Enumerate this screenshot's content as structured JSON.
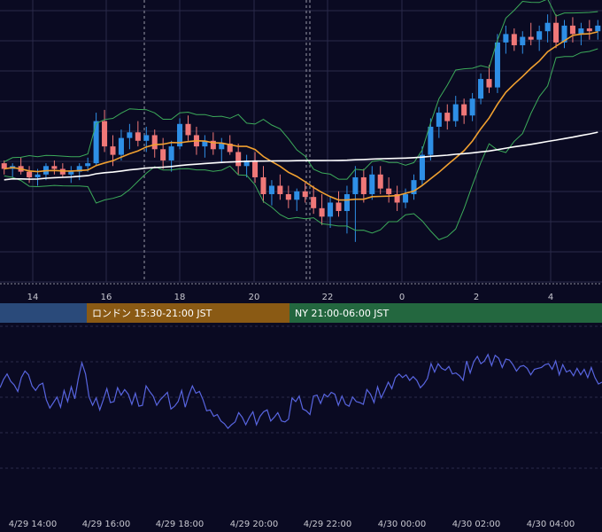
{
  "chart_data": [
    {
      "type": "candlestick",
      "x_ticks": [
        "14",
        "16",
        "18",
        "20",
        "22",
        "0",
        "2",
        "4"
      ],
      "series": [
        {
          "name": "",
          "color": "#ffffff",
          "kind": "moving-average-long"
        },
        {
          "name": "",
          "color": "#f0a030",
          "kind": "moving-average-short"
        },
        {
          "name": "",
          "color": "#3caa5a",
          "kind": "bollinger-bands"
        }
      ],
      "candle_colors": {
        "up": "#2e8fe6",
        "down": "#f07878"
      },
      "candles": [
        {
          "o": 100,
          "h": 100.1,
          "l": 99.6,
          "c": 99.8
        },
        {
          "o": 99.8,
          "h": 100.0,
          "l": 99.5,
          "c": 99.9
        },
        {
          "o": 99.9,
          "h": 100.2,
          "l": 99.6,
          "c": 99.7
        },
        {
          "o": 99.7,
          "h": 99.9,
          "l": 99.3,
          "c": 99.5
        },
        {
          "o": 99.5,
          "h": 99.8,
          "l": 99.2,
          "c": 99.6
        },
        {
          "o": 99.6,
          "h": 100.0,
          "l": 99.4,
          "c": 99.9
        },
        {
          "o": 99.9,
          "h": 100.1,
          "l": 99.6,
          "c": 99.8
        },
        {
          "o": 99.8,
          "h": 100.0,
          "l": 99.5,
          "c": 99.6
        },
        {
          "o": 99.6,
          "h": 99.9,
          "l": 99.3,
          "c": 99.7
        },
        {
          "o": 99.7,
          "h": 100.0,
          "l": 99.4,
          "c": 99.9
        },
        {
          "o": 99.9,
          "h": 100.2,
          "l": 99.7,
          "c": 100.0
        },
        {
          "o": 100,
          "h": 101.8,
          "l": 99.9,
          "c": 101.5
        },
        {
          "o": 101.5,
          "h": 101.9,
          "l": 100.4,
          "c": 100.6
        },
        {
          "o": 100.6,
          "h": 101.0,
          "l": 99.9,
          "c": 100.3
        },
        {
          "o": 100.3,
          "h": 101.2,
          "l": 100.1,
          "c": 100.9
        },
        {
          "o": 100.9,
          "h": 101.4,
          "l": 100.5,
          "c": 101.1
        },
        {
          "o": 101.1,
          "h": 101.5,
          "l": 100.6,
          "c": 100.8
        },
        {
          "o": 100.8,
          "h": 101.3,
          "l": 100.4,
          "c": 101.0
        },
        {
          "o": 101.0,
          "h": 101.2,
          "l": 100.2,
          "c": 100.5
        },
        {
          "o": 100.5,
          "h": 100.9,
          "l": 99.8,
          "c": 100.1
        },
        {
          "o": 100.1,
          "h": 100.8,
          "l": 99.7,
          "c": 100.6
        },
        {
          "o": 100.6,
          "h": 101.6,
          "l": 100.5,
          "c": 101.4
        },
        {
          "o": 101.4,
          "h": 101.7,
          "l": 100.8,
          "c": 101.0
        },
        {
          "o": 101.0,
          "h": 101.3,
          "l": 100.3,
          "c": 100.6
        },
        {
          "o": 100.6,
          "h": 101.0,
          "l": 100.2,
          "c": 100.8
        },
        {
          "o": 100.8,
          "h": 101.1,
          "l": 100.3,
          "c": 100.5
        },
        {
          "o": 100.5,
          "h": 100.9,
          "l": 100.0,
          "c": 100.7
        },
        {
          "o": 100.7,
          "h": 101.0,
          "l": 100.3,
          "c": 100.4
        },
        {
          "o": 100.4,
          "h": 100.7,
          "l": 99.6,
          "c": 99.9
        },
        {
          "o": 99.9,
          "h": 100.3,
          "l": 99.5,
          "c": 100.1
        },
        {
          "o": 100.1,
          "h": 100.4,
          "l": 99.3,
          "c": 99.5
        },
        {
          "o": 99.5,
          "h": 99.9,
          "l": 98.6,
          "c": 98.9
        },
        {
          "o": 98.9,
          "h": 99.4,
          "l": 98.5,
          "c": 99.2
        },
        {
          "o": 99.2,
          "h": 99.6,
          "l": 98.7,
          "c": 98.9
        },
        {
          "o": 98.9,
          "h": 99.2,
          "l": 98.4,
          "c": 98.7
        },
        {
          "o": 98.7,
          "h": 99.1,
          "l": 98.3,
          "c": 99.0
        },
        {
          "o": 99.0,
          "h": 99.3,
          "l": 98.6,
          "c": 98.8
        },
        {
          "o": 98.8,
          "h": 99.2,
          "l": 98.2,
          "c": 98.4
        },
        {
          "o": 98.4,
          "h": 98.9,
          "l": 97.8,
          "c": 98.1
        },
        {
          "o": 98.1,
          "h": 98.8,
          "l": 97.7,
          "c": 98.6
        },
        {
          "o": 98.6,
          "h": 99.0,
          "l": 98.1,
          "c": 98.3
        },
        {
          "o": 98.3,
          "h": 99.2,
          "l": 97.5,
          "c": 98.9
        },
        {
          "o": 98.9,
          "h": 99.9,
          "l": 97.2,
          "c": 99.5
        },
        {
          "o": 99.5,
          "h": 99.8,
          "l": 98.6,
          "c": 98.9
        },
        {
          "o": 98.9,
          "h": 99.9,
          "l": 98.7,
          "c": 99.6
        },
        {
          "o": 99.6,
          "h": 99.9,
          "l": 98.9,
          "c": 99.1
        },
        {
          "o": 99.1,
          "h": 99.5,
          "l": 98.6,
          "c": 98.9
        },
        {
          "o": 98.9,
          "h": 99.2,
          "l": 98.3,
          "c": 98.6
        },
        {
          "o": 98.6,
          "h": 99.1,
          "l": 98.4,
          "c": 98.9
        },
        {
          "o": 98.9,
          "h": 99.6,
          "l": 98.7,
          "c": 99.4
        },
        {
          "o": 99.4,
          "h": 100.6,
          "l": 99.2,
          "c": 100.3
        },
        {
          "o": 100.3,
          "h": 101.6,
          "l": 100.1,
          "c": 101.3
        },
        {
          "o": 101.3,
          "h": 102.0,
          "l": 100.9,
          "c": 101.8
        },
        {
          "o": 101.8,
          "h": 102.1,
          "l": 101.2,
          "c": 101.5
        },
        {
          "o": 101.5,
          "h": 102.4,
          "l": 101.3,
          "c": 102.1
        },
        {
          "o": 102.1,
          "h": 102.3,
          "l": 101.4,
          "c": 101.7
        },
        {
          "o": 101.7,
          "h": 102.5,
          "l": 101.5,
          "c": 102.3
        },
        {
          "o": 102.3,
          "h": 103.2,
          "l": 102.1,
          "c": 103.0
        },
        {
          "o": 103.0,
          "h": 103.5,
          "l": 102.5,
          "c": 102.7
        },
        {
          "o": 102.7,
          "h": 104.6,
          "l": 102.5,
          "c": 104.3
        },
        {
          "o": 104.3,
          "h": 104.9,
          "l": 103.9,
          "c": 104.6
        },
        {
          "o": 104.6,
          "h": 104.8,
          "l": 104.0,
          "c": 104.2
        },
        {
          "o": 104.2,
          "h": 104.7,
          "l": 103.9,
          "c": 104.5
        },
        {
          "o": 104.5,
          "h": 105.0,
          "l": 104.2,
          "c": 104.4
        },
        {
          "o": 104.4,
          "h": 104.9,
          "l": 104.0,
          "c": 104.7
        },
        {
          "o": 104.7,
          "h": 105.3,
          "l": 104.3,
          "c": 105.0
        },
        {
          "o": 105.0,
          "h": 105.3,
          "l": 104.1,
          "c": 104.3
        },
        {
          "o": 104.3,
          "h": 105.1,
          "l": 104.1,
          "c": 104.9
        },
        {
          "o": 104.9,
          "h": 105.2,
          "l": 104.3,
          "c": 104.6
        },
        {
          "o": 104.6,
          "h": 105.0,
          "l": 104.2,
          "c": 104.8
        },
        {
          "o": 104.8,
          "h": 105.1,
          "l": 104.4,
          "c": 104.7
        },
        {
          "o": 104.7,
          "h": 105.1,
          "l": 104.4,
          "c": 104.9
        }
      ],
      "sessions": [
        {
          "label": "",
          "color": "#2a4a7a"
        },
        {
          "label": "ロンドン 15:30-21:00 JST",
          "color": "#8a5a14"
        },
        {
          "label": "NY 21:00-06:00 JST",
          "color": "#23673f"
        }
      ]
    },
    {
      "type": "line",
      "name": "",
      "color": "#5865e0",
      "values": [
        50.5,
        51.4,
        52.0,
        51.2,
        50.8,
        50.1,
        51.6,
        52.3,
        51.9,
        50.7,
        50.2,
        50.8,
        51.0,
        49.2,
        48.3,
        48.9,
        49.5,
        48.4,
        50.2,
        49.0,
        50.6,
        49.3,
        51.5,
        53.2,
        52.0,
        49.5,
        48.6,
        49.4,
        48.1,
        49.2,
        50.4,
        48.9,
        49.0,
        50.5,
        49.7,
        50.3,
        49.8,
        48.7,
        49.9,
        48.5,
        48.6,
        50.7,
        50.1,
        49.6,
        48.6,
        49.2,
        49.6,
        50.0,
        48.2,
        48.5,
        49.0,
        50.2,
        48.4,
        49.7,
        50.7,
        49.9,
        50.1,
        49.2,
        48.0,
        48.1,
        47.4,
        47.6,
        46.9,
        46.6,
        46.1,
        46.5,
        46.8,
        47.8,
        47.3,
        46.5,
        47.3,
        47.9,
        46.5,
        47.4,
        47.9,
        48.1,
        46.9,
        47.3,
        47.8,
        46.9,
        46.8,
        47.1,
        49.4,
        49.0,
        49.6,
        48.2,
        48.0,
        47.6,
        49.6,
        49.7,
        48.8,
        49.8,
        49.5,
        50.0,
        49.8,
        48.6,
        49.6,
        48.7,
        48.5,
        49.5,
        49.0,
        48.9,
        48.7,
        50.3,
        49.8,
        48.9,
        50.6,
        49.4,
        50.2,
        51.1,
        50.4,
        51.6,
        52.0,
        51.6,
        51.9,
        51.3,
        51.7,
        51.3,
        50.5,
        50.9,
        51.5,
        53.1,
        52.2,
        53.1,
        52.6,
        52.4,
        52.8,
        52.0,
        52.1,
        51.8,
        51.3,
        53.4,
        52.1,
        53.3,
        53.9,
        53.1,
        53.4,
        54.1,
        52.9,
        54.0,
        53.7,
        52.7,
        53.6,
        53.5,
        53.0,
        52.3,
        52.8,
        52.9,
        52.6,
        51.9,
        52.5,
        52.6,
        52.7,
        53.0,
        53.1,
        52.5,
        53.4,
        51.9,
        53.0,
        52.2,
        52.4,
        51.8,
        52.6,
        51.9,
        52.5,
        51.6,
        52.7,
        51.6,
        50.9,
        51.1
      ]
    }
  ],
  "top_axis": {
    "labels": [
      "14",
      "16",
      "18",
      "20",
      "22",
      "0",
      "2",
      "4"
    ]
  },
  "bottom_axis": {
    "labels": [
      "4/29 14:00",
      "4/29 16:00",
      "4/29 18:00",
      "4/29 20:00",
      "4/29 22:00",
      "4/30 00:00",
      "4/30 02:00",
      "4/30 04:00"
    ]
  },
  "colors": {
    "background": "#0a0a22",
    "grid": "#2a2a4a",
    "session_asia": "#2a4a7a",
    "session_london": "#8a5a14",
    "session_ny": "#23673f"
  }
}
